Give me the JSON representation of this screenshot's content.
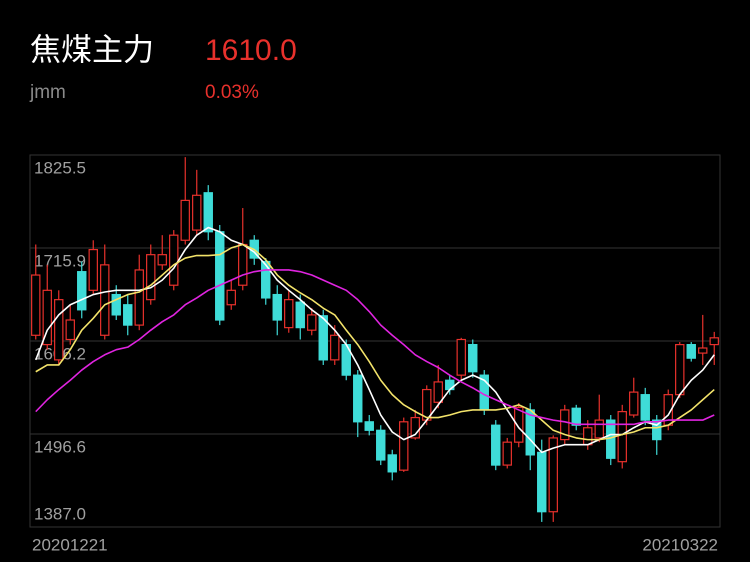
{
  "chart_data": {
    "type": "candlestick",
    "title": "焦煤主力",
    "price": "1610.0",
    "subtitle": "jmm",
    "change": "0.03%",
    "up_color": "#e8312c",
    "down_color": "#3fdcd8",
    "grid": true,
    "ylim": [
      1387.0,
      1825.5
    ],
    "yticks": [
      {
        "value": 1387.0,
        "label": "1387.0"
      },
      1496.6,
      1606.2,
      1715.9,
      1825.5
    ],
    "categories": [
      "20201221",
      null,
      null,
      null,
      null,
      null,
      null,
      null,
      null,
      null,
      null,
      null,
      null,
      null,
      null,
      null,
      null,
      null,
      null,
      null,
      null,
      null,
      null,
      null,
      null,
      null,
      null,
      null,
      null,
      null,
      null,
      null,
      null,
      null,
      null,
      null,
      null,
      null,
      null,
      null,
      null,
      null,
      null,
      null,
      null,
      null,
      null,
      null,
      null,
      null,
      null,
      null,
      null,
      null,
      null,
      null,
      null,
      null,
      null,
      "20210322"
    ],
    "open": [
      1613,
      1602,
      1584,
      1608,
      1688,
      1666,
      1613,
      1661,
      1649,
      1625,
      1655,
      1696,
      1672,
      1725,
      1737,
      1781,
      1735,
      1649,
      1672,
      1725,
      1700,
      1661,
      1622,
      1652,
      1619,
      1636,
      1584,
      1602,
      1566,
      1511,
      1501,
      1472,
      1454,
      1492,
      1513,
      1534,
      1560,
      1566,
      1602,
      1566,
      1507,
      1460,
      1487,
      1525,
      1475,
      1405,
      1490,
      1527,
      1484,
      1492,
      1513,
      1464,
      1519,
      1543,
      1513,
      1507,
      1543,
      1602,
      1592,
      1602
    ],
    "high": [
      1720,
      1696,
      1666,
      1649,
      1700,
      1725,
      1720,
      1672,
      1661,
      1708,
      1720,
      1731,
      1737,
      1823,
      1808,
      1790,
      1743,
      1678,
      1763,
      1731,
      1704,
      1672,
      1666,
      1661,
      1645,
      1643,
      1625,
      1608,
      1572,
      1519,
      1507,
      1478,
      1516,
      1525,
      1554,
      1578,
      1566,
      1610,
      1608,
      1572,
      1513,
      1492,
      1533,
      1533,
      1490,
      1495,
      1531,
      1531,
      1513,
      1543,
      1519,
      1531,
      1563,
      1551,
      1519,
      1549,
      1605,
      1605,
      1637,
      1617
    ],
    "low": [
      1608,
      1596,
      1578,
      1602,
      1633,
      1661,
      1608,
      1631,
      1613,
      1619,
      1649,
      1690,
      1666,
      1720,
      1731,
      1725,
      1625,
      1643,
      1666,
      1696,
      1649,
      1613,
      1616,
      1608,
      1613,
      1578,
      1578,
      1560,
      1493,
      1495,
      1460,
      1442,
      1452,
      1490,
      1507,
      1527,
      1543,
      1560,
      1563,
      1519,
      1454,
      1456,
      1481,
      1454,
      1393,
      1393,
      1484,
      1501,
      1478,
      1487,
      1460,
      1456,
      1516,
      1507,
      1472,
      1501,
      1539,
      1582,
      1578,
      1578
    ],
    "close": [
      1684,
      1666,
      1655,
      1631,
      1643,
      1714,
      1696,
      1637,
      1625,
      1690,
      1708,
      1708,
      1731,
      1772,
      1778,
      1735,
      1631,
      1666,
      1720,
      1704,
      1657,
      1631,
      1655,
      1622,
      1637,
      1584,
      1613,
      1566,
      1511,
      1501,
      1466,
      1452,
      1511,
      1516,
      1549,
      1558,
      1549,
      1608,
      1570,
      1525,
      1460,
      1487,
      1528,
      1472,
      1405,
      1492,
      1525,
      1507,
      1504,
      1513,
      1468,
      1523,
      1546,
      1513,
      1490,
      1543,
      1602,
      1586,
      1598,
      1610
    ],
    "series": [
      {
        "color": "#ffffff",
        "values": [
          1584,
          1619,
          1637,
          1649,
          1655,
          1661,
          1664,
          1666,
          1666,
          1666,
          1669,
          1678,
          1692,
          1714,
          1731,
          1740,
          1735,
          1725,
          1720,
          1711,
          1696,
          1678,
          1666,
          1655,
          1643,
          1633,
          1619,
          1602,
          1578,
          1549,
          1519,
          1499,
          1490,
          1496,
          1513,
          1531,
          1549,
          1560,
          1566,
          1560,
          1546,
          1525,
          1504,
          1490,
          1475,
          1480,
          1484,
          1484,
          1484,
          1490,
          1496,
          1496,
          1504,
          1511,
          1507,
          1519,
          1543,
          1560,
          1572,
          1590
        ]
      },
      {
        "color": "#f3e36a",
        "values": [
          1570,
          1578,
          1578,
          1596,
          1619,
          1633,
          1649,
          1655,
          1661,
          1664,
          1672,
          1684,
          1696,
          1704,
          1707,
          1707,
          1708,
          1716,
          1720,
          1714,
          1702,
          1684,
          1672,
          1663,
          1655,
          1645,
          1637,
          1619,
          1602,
          1582,
          1560,
          1543,
          1531,
          1523,
          1516,
          1516,
          1519,
          1523,
          1525,
          1525,
          1525,
          1527,
          1531,
          1525,
          1513,
          1501,
          1496,
          1492,
          1490,
          1490,
          1492,
          1496,
          1499,
          1504,
          1504,
          1507,
          1516,
          1525,
          1537,
          1549
        ]
      },
      {
        "color": "#e024e0",
        "values": [
          1523,
          1537,
          1549,
          1560,
          1572,
          1582,
          1590,
          1596,
          1599,
          1608,
          1619,
          1629,
          1637,
          1649,
          1657,
          1666,
          1672,
          1678,
          1684,
          1688,
          1690,
          1690,
          1690,
          1688,
          1684,
          1678,
          1672,
          1666,
          1655,
          1641,
          1625,
          1613,
          1602,
          1590,
          1582,
          1575,
          1566,
          1558,
          1551,
          1543,
          1537,
          1531,
          1525,
          1519,
          1516,
          1513,
          1511,
          1508,
          1508,
          1508,
          1508,
          1508,
          1508,
          1511,
          1511,
          1513,
          1513,
          1513,
          1513,
          1519
        ]
      }
    ]
  }
}
